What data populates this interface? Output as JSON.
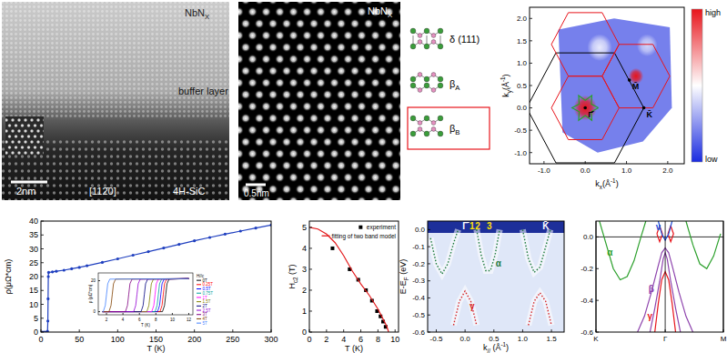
{
  "stem_cross_section": {
    "material": [
      {
        "text": "NbN"
      },
      {
        "text": "X",
        "sub": true
      }
    ],
    "layer": "buffer layer",
    "scale_bar": "2nm",
    "zone_axis": "[112̄0]",
    "substrate": "4H-SiC"
  },
  "stem_plan_view": {
    "material": [
      {
        "text": "NbN"
      },
      {
        "text": "X",
        "sub": true
      }
    ],
    "scale_bar": "0.5nm"
  },
  "structures": [
    {
      "label": [
        {
          "text": "δ (111)"
        }
      ],
      "highlighted": false
    },
    {
      "label": [
        {
          "text": "β"
        },
        {
          "text": "A",
          "sub": true
        }
      ],
      "highlighted": false
    },
    {
      "label": [
        {
          "text": "β"
        },
        {
          "text": "B",
          "sub": true
        }
      ],
      "highlighted": true
    }
  ],
  "chart_data": [
    {
      "type": "heatmap",
      "xlabel": [
        {
          "text": "k"
        },
        {
          "text": "x",
          "sub": true
        },
        {
          "text": "(Å"
        },
        {
          "text": "-1",
          "sup": true
        },
        {
          "text": ")"
        }
      ],
      "ylabel": [
        {
          "text": "k"
        },
        {
          "text": "y",
          "sub": true
        },
        {
          "text": "(Å"
        },
        {
          "text": "-1",
          "sup": true
        },
        {
          "text": ")"
        }
      ],
      "xlim": [
        -1.35,
        2.4
      ],
      "ylim": [
        -1.25,
        2.25
      ],
      "xticks": [
        {
          "value": -1,
          "label": "-1.0"
        },
        {
          "value": 0,
          "label": "0.0"
        },
        {
          "value": 1,
          "label": "1.0"
        },
        {
          "value": 2,
          "label": "2.0"
        }
      ],
      "yticks": [
        {
          "value": -1,
          "label": "-1.0"
        },
        -0.5,
        {
          "value": 0,
          "label": "0.0"
        },
        0.5,
        {
          "value": 1,
          "label": "1.0"
        },
        1.5,
        {
          "value": 2,
          "label": "2.0"
        }
      ],
      "map_region": {
        "x": [
          -0.65,
          0.7,
          2.05,
          2.1,
          1.4,
          0.3,
          -0.55
        ],
        "y": [
          1.75,
          2.0,
          1.8,
          0.0,
          -0.75,
          -1.0,
          -0.55
        ],
        "level": 0.2
      },
      "spots": [
        {
          "x": 0,
          "y": 0,
          "radius": 0.28,
          "level": 1
        },
        {
          "x": 1.23,
          "y": 0.71,
          "radius": 0.18,
          "level": 1
        },
        {
          "x": 0.35,
          "y": 1.35,
          "radius": 0.3,
          "level": 0.45
        },
        {
          "x": 1.5,
          "y": 1.4,
          "radius": 0.25,
          "level": 0.4
        }
      ],
      "contours": [
        {
          "color": "#2ca02c",
          "x": [
            0.32,
            0.147,
            0.16,
            0,
            -0.16,
            -0.147,
            -0.32,
            -0.147,
            -0.16,
            0,
            0.16,
            0.147,
            0.32
          ],
          "y": [
            0,
            0.085,
            0.277,
            0.17,
            0.277,
            0.085,
            0,
            -0.085,
            -0.277,
            -0.17,
            -0.277,
            -0.085,
            0
          ]
        }
      ],
      "brillouin_zones": [
        {
          "x": 0,
          "y": 0,
          "radius": 1.42,
          "color": "#000000"
        },
        {
          "x": 0,
          "y": 0,
          "radius": 0.82,
          "color": "#e8141b"
        },
        {
          "x": 1.23,
          "y": 0.71,
          "radius": 0.82,
          "color": "#e8141b"
        },
        {
          "x": 0,
          "y": 1.42,
          "radius": 0.82,
          "color": "#e8141b"
        }
      ],
      "points": [
        {
          "label": "Γ̄",
          "x": 0,
          "y": 0
        },
        {
          "label": "M̄",
          "x": 1.07,
          "y": 0.62
        },
        {
          "label": "K̄",
          "x": 1.42,
          "y": 0
        }
      ],
      "colorscale": [
        "#1a2be0",
        "#ffffff",
        "#e8141b"
      ],
      "colorbar_labels": [
        "high",
        "low"
      ]
    },
    {
      "type": "line",
      "xlabel": "T (K)",
      "ylabel": "ρ(μΩ*cm)",
      "xlim": [
        0,
        300
      ],
      "ylim": [
        0,
        40
      ],
      "xticks": [
        0,
        50,
        100,
        150,
        200,
        250,
        300
      ],
      "yticks": [
        0,
        5,
        10,
        15,
        20,
        25,
        30,
        35,
        40
      ],
      "x": [
        2,
        4,
        6,
        8,
        8.6,
        9,
        9.3,
        9.6,
        10,
        15,
        20,
        30,
        40,
        50,
        60,
        80,
        100,
        120,
        140,
        160,
        180,
        200,
        220,
        240,
        260,
        280,
        300
      ],
      "series": [
        {
          "color": "#1f3fbf",
          "marker": "circle",
          "values": [
            0,
            0,
            0,
            0,
            0.3,
            4,
            12,
            20,
            21.5,
            21.7,
            21.9,
            22.3,
            22.8,
            23.3,
            23.9,
            25.1,
            26.4,
            27.7,
            29.0,
            30.3,
            31.6,
            32.9,
            34.1,
            35.3,
            36.4,
            37.5,
            38.6
          ]
        }
      ],
      "inset": {
        "type": "line",
        "xlabel": "T (K)",
        "ylabel": "ρ (μΩ*cm)",
        "xlim": [
          1,
          12.5
        ],
        "ylim": [
          -2,
          25
        ],
        "xticks": [
          2,
          4,
          6,
          8,
          10,
          12
        ],
        "yticks": [
          0,
          20
        ],
        "legend": "right",
        "legend_title": "H//c",
        "series": [
          {
            "name": "0T",
            "color": "#000000",
            "x": [
              1.5,
              8.8,
              9.05,
              9.2,
              9.35,
              9.6,
              12
            ],
            "values": [
              0,
              0,
              4,
              11,
              18,
              21,
              21.3
            ]
          },
          {
            "name": "0.25T",
            "color": "#ff0000",
            "x": [
              1.5,
              8.5,
              8.75,
              8.9,
              9.05,
              9.3,
              12
            ],
            "values": [
              0,
              0,
              4,
              11,
              18,
              21,
              21.3
            ]
          },
          {
            "name": "0.5T",
            "color": "#0000ff",
            "x": [
              1.5,
              8.2,
              8.45,
              8.6,
              8.75,
              9.0,
              12
            ],
            "values": [
              0,
              0,
              4,
              11,
              18,
              21,
              21.3
            ]
          },
          {
            "name": "0.75T",
            "color": "#00a0a0",
            "x": [
              1.5,
              7.9,
              8.15,
              8.3,
              8.45,
              8.7,
              12
            ],
            "values": [
              0,
              0,
              4,
              11,
              18,
              21,
              21.3
            ]
          },
          {
            "name": "1T",
            "color": "#ff00ff",
            "x": [
              1.5,
              7.5,
              7.75,
              7.9,
              8.05,
              8.3,
              12
            ],
            "values": [
              0,
              0,
              4,
              11,
              18,
              21,
              21.3
            ]
          },
          {
            "name": "1.5T",
            "color": "#808000",
            "x": [
              1.5,
              6.9,
              7.15,
              7.3,
              7.45,
              7.7,
              12
            ],
            "values": [
              0,
              0,
              4,
              11,
              18,
              21,
              21.3
            ]
          },
          {
            "name": "2T",
            "color": "#000080",
            "x": [
              1.5,
              6.2,
              6.45,
              6.6,
              6.75,
              7.0,
              12
            ],
            "values": [
              0,
              0,
              4,
              11,
              18,
              21,
              21.3
            ]
          },
          {
            "name": "2.5T",
            "color": "#9400d3",
            "x": [
              1.5,
              5.3,
              5.55,
              5.7,
              5.85,
              6.1,
              12
            ],
            "values": [
              0,
              0,
              4,
              11,
              18,
              21,
              21.3
            ]
          },
          {
            "name": "3T",
            "color": "#800080",
            "x": [
              1.5,
              4.3,
              4.55,
              4.7,
              4.85,
              5.1,
              12
            ],
            "values": [
              0,
              0,
              4,
              11,
              18,
              21,
              21.3
            ]
          },
          {
            "name": "4T",
            "color": "#804000",
            "x": [
              1.5,
              2.3,
              2.55,
              2.7,
              2.85,
              3.1,
              12
            ],
            "values": [
              0,
              0,
              4,
              11,
              18,
              21,
              21.3
            ]
          },
          {
            "name": "5T",
            "color": "#4080ff",
            "x": [
              1.5,
              1.6,
              1.85,
              2.0,
              2.15,
              2.4,
              12
            ],
            "values": [
              0,
              0,
              4,
              11,
              18,
              21,
              21.3
            ]
          }
        ]
      }
    },
    {
      "type": "scatter",
      "xlabel": "T (K)",
      "ylabel": [
        {
          "text": "H"
        },
        {
          "text": "c2",
          "sub": true
        },
        {
          "text": " (T)"
        }
      ],
      "xlim": [
        0,
        10.4
      ],
      "ylim": [
        0,
        5.3
      ],
      "xticks": [
        0,
        2,
        4,
        6,
        8,
        10
      ],
      "yticks": [
        0,
        1,
        2,
        3,
        4,
        5
      ],
      "legend": "upper right",
      "series": [
        {
          "name": "experiment",
          "type": "scatter",
          "marker": "square",
          "color": "#000000",
          "x": [
            2.7,
            4.7,
            5.7,
            6.6,
            7.3,
            7.9,
            8.3,
            8.6,
            8.9
          ],
          "values": [
            4.0,
            3.0,
            2.5,
            2.0,
            1.5,
            1.0,
            0.75,
            0.5,
            0.25
          ]
        },
        {
          "name": "fitting of two band model",
          "type": "line",
          "color": "#e31a1c",
          "x": [
            0,
            1,
            2,
            3,
            4,
            5,
            6,
            7,
            8,
            9,
            9.25
          ],
          "values": [
            5.0,
            4.92,
            4.68,
            4.27,
            3.65,
            2.92,
            2.3,
            1.75,
            1.1,
            0.3,
            0
          ]
        }
      ]
    },
    {
      "type": "line",
      "xlabel": [
        {
          "text": "k"
        },
        {
          "text": "//",
          "sub": true
        },
        {
          "text": " (Å"
        },
        {
          "text": "-1",
          "sup": true
        },
        {
          "text": ")"
        }
      ],
      "ylabel": [
        {
          "text": "E-E"
        },
        {
          "text": "F",
          "sub": true
        },
        {
          "text": " (eV)"
        }
      ],
      "xlim": [
        -0.65,
        1.72
      ],
      "ylim": [
        -0.6,
        0.05
      ],
      "xticks": [
        -0.5,
        {
          "value": 0,
          "label": "0.0"
        },
        0.5,
        {
          "value": 1,
          "label": "1.0"
        },
        1.5
      ],
      "yticks": [
        {
          "value": 0,
          "label": "0.0"
        },
        -0.1,
        -0.2,
        -0.3,
        -0.4,
        -0.5,
        -0.6
      ],
      "series": [
        {
          "color": "#1e7b3c",
          "line_style": "dotted",
          "x": [
            -0.6,
            -0.5,
            -0.4,
            -0.3,
            -0.2,
            -0.12,
            null,
            0.2,
            0.28,
            0.36,
            0.44,
            0.52,
            0.6,
            null,
            1.0,
            1.1,
            1.2,
            1.3,
            1.4,
            1.48
          ],
          "values": [
            -0.05,
            -0.2,
            -0.26,
            -0.2,
            -0.08,
            0.0,
            null,
            0.0,
            -0.15,
            -0.24,
            -0.24,
            -0.15,
            0.0,
            null,
            0.0,
            -0.17,
            -0.25,
            -0.22,
            -0.1,
            0.0
          ]
        },
        {
          "color": "#d62728",
          "line_style": "dotted",
          "x": [
            -0.2,
            -0.1,
            0.0,
            0.1,
            0.2,
            null,
            1.1,
            1.2,
            1.3,
            1.4,
            1.5
          ],
          "values": [
            -0.56,
            -0.42,
            -0.36,
            -0.42,
            -0.56,
            null,
            -0.56,
            -0.42,
            -0.37,
            -0.42,
            -0.56
          ]
        }
      ],
      "annotations": [
        {
          "text": "Γ̄",
          "x": 0,
          "y": 0.02,
          "color": "#ffffff"
        },
        {
          "text": "1",
          "x": 0.12,
          "y": 0.02,
          "color": "#ffe000"
        },
        {
          "text": "2",
          "x": 0.22,
          "y": 0.02,
          "color": "#ffe000"
        },
        {
          "text": "3",
          "x": 0.42,
          "y": 0.02,
          "color": "#ffe000"
        },
        {
          "text": "K̄",
          "x": 1.4,
          "y": 0.02,
          "color": "#ffffff"
        },
        {
          "text": "α",
          "x": 0.58,
          "y": -0.2,
          "color": "#1e7b3c"
        },
        {
          "text": "γ",
          "x": 0.12,
          "y": -0.45,
          "color": "#d62728"
        }
      ]
    },
    {
      "type": "line",
      "xlim": [
        0,
        1.84
      ],
      "ylim": [
        -0.6,
        0.1
      ],
      "xticks": [
        {
          "value": 0,
          "label": "K"
        },
        {
          "value": 1,
          "label": "Γ"
        },
        {
          "value": 1.84,
          "label": "M"
        }
      ],
      "yticks": [
        {
          "value": 0,
          "label": "0.0"
        },
        -0.2,
        -0.4,
        -0.6
      ],
      "grid": "x",
      "fermi_level": 0,
      "series": [
        {
          "color": "#2ca02c",
          "x": [
            0.05,
            0.15,
            0.25,
            0.35,
            0.45,
            0.55,
            0.65,
            0.72,
            null,
            1.3,
            1.4,
            1.5,
            1.6,
            1.7,
            1.8
          ],
          "values": [
            0.1,
            -0.05,
            -0.2,
            -0.27,
            -0.25,
            -0.15,
            0.0,
            0.1,
            null,
            0.1,
            -0.05,
            -0.17,
            -0.2,
            -0.12,
            0.02
          ]
        },
        {
          "color": "#8e44ad",
          "x": [
            0.6,
            0.7,
            0.8,
            0.9,
            0.95,
            1.0,
            1.05,
            1.1,
            1.2,
            1.3,
            1.4,
            null,
            0.78,
            0.85,
            0.92,
            0.97,
            1.0,
            1.03,
            1.08,
            1.15,
            1.22
          ],
          "values": [
            -0.6,
            -0.5,
            -0.35,
            -0.18,
            -0.1,
            -0.07,
            -0.1,
            -0.18,
            -0.35,
            -0.5,
            -0.6,
            null,
            -0.6,
            -0.45,
            -0.28,
            -0.14,
            -0.1,
            -0.14,
            -0.28,
            -0.45,
            -0.6
          ]
        },
        {
          "color": "#e8141b",
          "x": [
            0.85,
            0.9,
            0.95,
            1.0,
            1.05,
            1.1,
            1.15,
            null,
            0.88,
            0.92,
            0.96,
            0.92,
            0.88,
            null,
            1.04,
            1.08,
            1.12,
            1.08,
            1.04
          ],
          "values": [
            -0.6,
            -0.42,
            -0.27,
            -0.22,
            -0.27,
            -0.42,
            -0.6,
            null,
            0.02,
            0.07,
            0.02,
            -0.03,
            0.02,
            null,
            0.02,
            0.07,
            0.02,
            -0.03,
            0.02
          ]
        },
        {
          "color": "#1f4fd8",
          "x": [
            0.9,
            0.95,
            1.0,
            1.05,
            1.1
          ],
          "values": [
            0.1,
            0.02,
            -0.02,
            0.02,
            0.1
          ]
        }
      ],
      "annotations": [
        {
          "text": "α",
          "x": 0.2,
          "y": -0.1,
          "color": "#2ca02c"
        },
        {
          "text": "β",
          "x": 0.8,
          "y": -0.33,
          "color": "#8e44ad"
        },
        {
          "text": "γ",
          "x": 0.78,
          "y": -0.5,
          "color": "#e8141b"
        },
        {
          "text": "ν",
          "x": 0.9,
          "y": 0.06,
          "color": "#1f4fd8"
        }
      ]
    }
  ]
}
